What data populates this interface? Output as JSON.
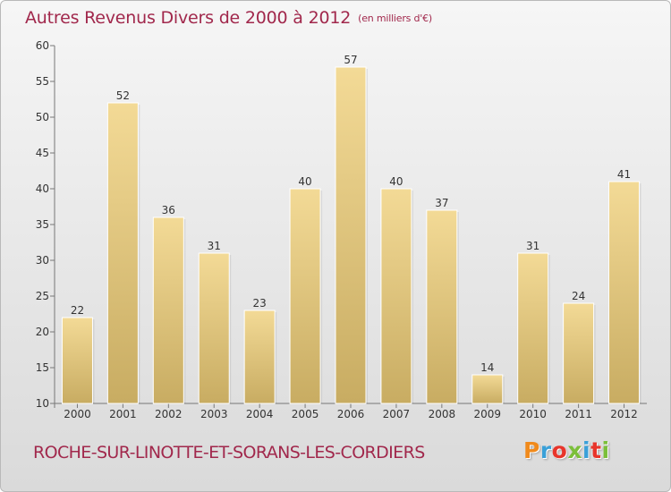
{
  "header": {
    "title": "Autres Revenus Divers de 2000 à 2012",
    "unit": "(en milliers d'€)"
  },
  "footer": {
    "commune": "ROCHE-SUR-LINOTTE-ET-SORANS-LES-CORDIERS",
    "brand": "Proxiti",
    "brand_colors": [
      "#f08a1c",
      "#3aa0d8",
      "#e8352b",
      "#7bbf3a",
      "#3aa0d8",
      "#e8352b",
      "#7bbf3a"
    ]
  },
  "colors": {
    "title": "#a1284c",
    "bar_light": "#f3da96",
    "bar_dark": "#c8ac62",
    "background_top": "#f6f6f6",
    "background_bottom": "#dadada"
  },
  "chart_data": {
    "type": "bar",
    "categories": [
      "2000",
      "2001",
      "2002",
      "2003",
      "2004",
      "2005",
      "2006",
      "2007",
      "2008",
      "2009",
      "2010",
      "2011",
      "2012"
    ],
    "values": [
      22,
      52,
      36,
      31,
      23,
      40,
      57,
      40,
      37,
      14,
      31,
      24,
      41
    ],
    "ylim": [
      10,
      60
    ],
    "yticks": [
      10,
      15,
      20,
      25,
      30,
      35,
      40,
      45,
      50,
      55,
      60
    ],
    "grid": false,
    "value_labels": true
  }
}
